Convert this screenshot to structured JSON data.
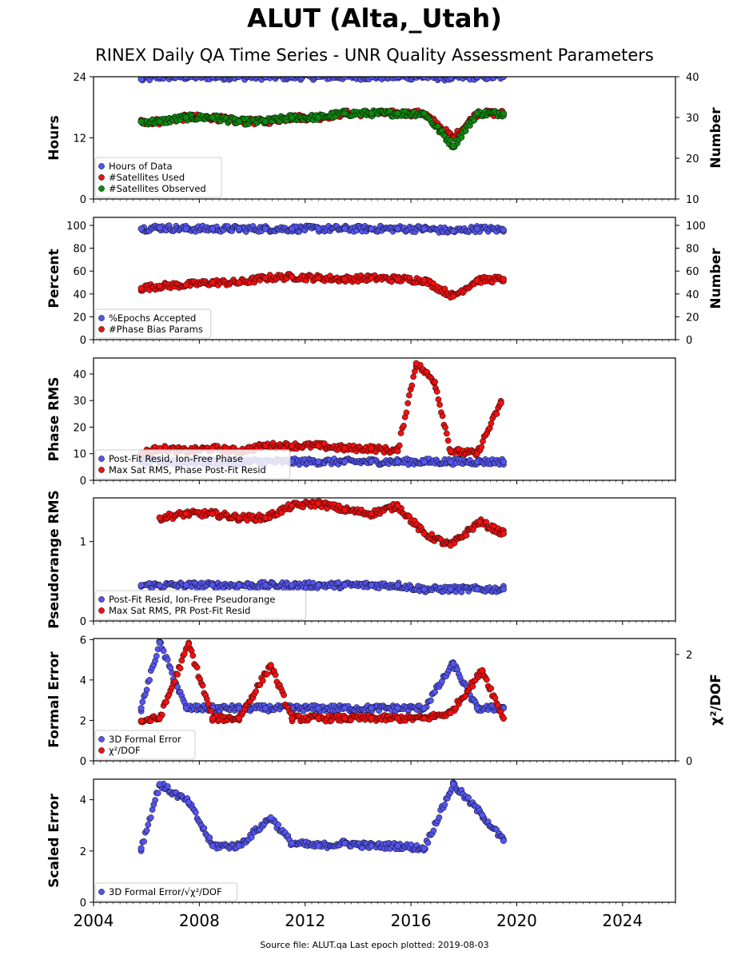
{
  "title": "ALUT (Alta,_Utah)",
  "subtitle": "RINEX Daily QA Time Series - UNR Quality Assessment Parameters",
  "footer": "Source file: ALUT.qa Last epoch plotted: 2019-08-03",
  "colors": {
    "blue": "#5555ee",
    "red": "#ee1111",
    "green": "#118811",
    "axis": "#000000"
  },
  "chart_data": [
    {
      "type": "scatter",
      "xlim": [
        2004,
        2026
      ],
      "xticks": [
        2004,
        2008,
        2012,
        2016,
        2020,
        2024
      ],
      "ylabel": "Hours",
      "ylim": [
        0,
        24
      ],
      "yticks": [
        0,
        12,
        24
      ],
      "y2label": "Number",
      "y2lim": [
        10,
        40
      ],
      "y2ticks": [
        10,
        20,
        30,
        40
      ],
      "legend": "lower-left",
      "series": [
        {
          "name": "Hours of Data",
          "color": "blue",
          "axis": "left",
          "x": [
            2005.8,
            2006.5,
            2007.5,
            2008.5,
            2009.5,
            2010.5,
            2011.5,
            2012.5,
            2013.5,
            2014.5,
            2015.5,
            2016.5,
            2017.5,
            2018.5,
            2019.5
          ],
          "y": [
            23.5,
            24,
            24,
            24,
            24,
            24,
            24,
            24,
            24,
            24,
            24,
            24,
            23.8,
            24,
            24
          ]
        },
        {
          "name": "#Satellites Used",
          "color": "red",
          "axis": "right",
          "x": [
            2005.8,
            2006.5,
            2007.5,
            2008.5,
            2009.5,
            2010.5,
            2011.5,
            2012.5,
            2013.5,
            2014.5,
            2015.5,
            2016.5,
            2017.6,
            2018.5,
            2019.5
          ],
          "y": [
            29,
            29,
            30,
            30,
            29,
            29,
            30,
            30,
            31,
            31,
            31,
            31,
            25,
            31,
            31
          ]
        },
        {
          "name": "#Satellites Observed",
          "color": "green",
          "axis": "right",
          "x": [
            2005.8,
            2006.5,
            2007.5,
            2008.5,
            2009.5,
            2010.5,
            2011.5,
            2012.5,
            2013.5,
            2014.5,
            2015.5,
            2016.5,
            2017.6,
            2018.5,
            2019.5
          ],
          "y": [
            29,
            29,
            30,
            30,
            29,
            29,
            30,
            30,
            31,
            31,
            31,
            31,
            23,
            31,
            31
          ]
        }
      ]
    },
    {
      "type": "scatter",
      "xlim": [
        2004,
        2026
      ],
      "xticks": [
        2004,
        2008,
        2012,
        2016,
        2020,
        2024
      ],
      "ylabel": "Percent",
      "ylim": [
        0,
        107
      ],
      "yticks": [
        0,
        20,
        40,
        60,
        80,
        100
      ],
      "y2label": "Number",
      "y2lim": [
        0,
        107
      ],
      "y2ticks": [
        0,
        20,
        40,
        60,
        80,
        100
      ],
      "legend": "lower-left",
      "series": [
        {
          "name": "%Epochs Accepted",
          "color": "blue",
          "axis": "left",
          "x": [
            2005.8,
            2006.5,
            2007.5,
            2008.5,
            2009.5,
            2010.5,
            2011.5,
            2012.5,
            2013.5,
            2014.5,
            2015.5,
            2016.5,
            2017.6,
            2018.5,
            2019.5
          ],
          "y": [
            97,
            98,
            97,
            97,
            97,
            97,
            97,
            97,
            97,
            97,
            97,
            97,
            95,
            97,
            96
          ]
        },
        {
          "name": "#Phase Bias Params",
          "color": "red",
          "axis": "right",
          "x": [
            2005.8,
            2006.5,
            2007.5,
            2008.5,
            2009.5,
            2010.5,
            2011.5,
            2012.5,
            2013.5,
            2014.5,
            2015.5,
            2016.5,
            2017.6,
            2018.5,
            2019.5
          ],
          "y": [
            45,
            47,
            48,
            50,
            50,
            54,
            55,
            54,
            53,
            54,
            53,
            52,
            38,
            52,
            53
          ]
        }
      ]
    },
    {
      "type": "scatter",
      "xlim": [
        2004,
        2026
      ],
      "xticks": [
        2004,
        2008,
        2012,
        2016,
        2020,
        2024
      ],
      "ylabel": "Phase RMS",
      "ylim": [
        0,
        46
      ],
      "yticks": [
        0,
        10,
        20,
        30,
        40
      ],
      "legend": "lower-left",
      "series": [
        {
          "name": "Post-Fit Resid, Ion-Free Phase",
          "color": "blue",
          "axis": "left",
          "x": [
            2005.8,
            2006.5,
            2007.5,
            2008.5,
            2009.5,
            2010.5,
            2011.5,
            2012.5,
            2013.5,
            2014.5,
            2015.5,
            2016.5,
            2017.5,
            2018.5,
            2019.5
          ],
          "y": [
            7,
            7,
            7,
            7,
            7,
            7,
            7,
            7,
            7,
            7,
            7,
            7,
            7,
            7,
            7
          ]
        },
        {
          "name": "Max Sat RMS, Phase Post-Fit Resid",
          "color": "red",
          "axis": "left",
          "x": [
            2005.8,
            2006.5,
            2007.5,
            2008.5,
            2009.5,
            2010.5,
            2011.5,
            2012.5,
            2013.5,
            2014.5,
            2015.5,
            2016.2,
            2016.9,
            2017.5,
            2018.5,
            2019.4
          ],
          "y": [
            10,
            12,
            11,
            12,
            11,
            13,
            13,
            13,
            12,
            12,
            11,
            44,
            37,
            11,
            10,
            29
          ]
        }
      ]
    },
    {
      "type": "scatter",
      "xlim": [
        2004,
        2026
      ],
      "xticks": [
        2004,
        2008,
        2012,
        2016,
        2020,
        2024
      ],
      "ylabel": "Pseudorange RMS",
      "ylim": [
        0,
        1.55
      ],
      "yticks": [
        0,
        1
      ],
      "legend": "lower-left",
      "series": [
        {
          "name": "Post-Fit Resid, Ion-Free Pseudorange",
          "color": "blue",
          "axis": "left",
          "x": [
            2005.8,
            2006.5,
            2007.5,
            2008.5,
            2009.5,
            2010.5,
            2011.5,
            2012.5,
            2013.5,
            2014.5,
            2015.5,
            2016.5,
            2017.5,
            2018.5,
            2019.5
          ],
          "y": [
            0.45,
            0.45,
            0.45,
            0.45,
            0.45,
            0.45,
            0.45,
            0.45,
            0.45,
            0.45,
            0.45,
            0.4,
            0.4,
            0.4,
            0.4
          ]
        },
        {
          "name": "Max Sat RMS, PR Post-Fit Resid",
          "color": "red",
          "axis": "left",
          "x": [
            2006.5,
            2007.5,
            2008.5,
            2009.5,
            2010.5,
            2011.5,
            2012.5,
            2013.5,
            2014.5,
            2015.5,
            2016.5,
            2017.5,
            2018.6,
            2019.5
          ],
          "y": [
            1.3,
            1.35,
            1.35,
            1.3,
            1.3,
            1.45,
            1.48,
            1.4,
            1.35,
            1.45,
            1.1,
            0.95,
            1.25,
            1.1
          ]
        }
      ]
    },
    {
      "type": "scatter",
      "xlim": [
        2004,
        2026
      ],
      "xticks": [
        2004,
        2008,
        2012,
        2016,
        2020,
        2024
      ],
      "ylabel": "Formal Error",
      "ylim": [
        0,
        6.05
      ],
      "yticks": [
        0,
        2,
        4,
        6
      ],
      "y2label": "χ²/DOF",
      "y2lim": [
        0,
        2.3
      ],
      "y2ticks": [
        0,
        2
      ],
      "legend": "lower-left",
      "series": [
        {
          "name": "3D Formal Error",
          "color": "blue",
          "axis": "left",
          "x": [
            2005.8,
            2006.5,
            2007.5,
            2008.5,
            2009.5,
            2010.5,
            2011.5,
            2012.5,
            2013.5,
            2014.5,
            2015.5,
            2016.5,
            2017.6,
            2018.5,
            2019.5
          ],
          "y": [
            2.6,
            5.85,
            2.6,
            2.6,
            2.6,
            2.6,
            2.6,
            2.6,
            2.6,
            2.6,
            2.6,
            2.6,
            4.8,
            2.6,
            2.6
          ]
        },
        {
          "name": "χ²/DOF",
          "color": "red",
          "axis": "right",
          "x": [
            2005.8,
            2006.5,
            2007.6,
            2008.5,
            2009.5,
            2010.7,
            2011.5,
            2012.5,
            2013.5,
            2014.5,
            2015.5,
            2016.5,
            2017.5,
            2018.7,
            2019.5
          ],
          "y": [
            0.75,
            0.8,
            2.2,
            0.8,
            0.8,
            1.8,
            0.8,
            0.8,
            0.8,
            0.8,
            0.8,
            0.8,
            0.9,
            1.7,
            0.8
          ]
        }
      ]
    },
    {
      "type": "scatter",
      "xlim": [
        2004,
        2026
      ],
      "xticks": [
        2004,
        2008,
        2012,
        2016,
        2020,
        2024
      ],
      "ylabel": "Scaled Error",
      "ylim": [
        0,
        4.8
      ],
      "yticks": [
        0,
        2,
        4
      ],
      "legend": "lower-left",
      "series": [
        {
          "name": "3D Formal Error/√χ²/DOF",
          "color": "blue",
          "axis": "left",
          "x": [
            2005.8,
            2006.5,
            2007.6,
            2008.5,
            2009.5,
            2010.7,
            2011.5,
            2012.5,
            2013.5,
            2014.5,
            2015.5,
            2016.5,
            2017.6,
            2018.7,
            2019.5
          ],
          "y": [
            2.1,
            4.6,
            3.9,
            2.2,
            2.2,
            3.3,
            2.3,
            2.2,
            2.3,
            2.2,
            2.2,
            2.1,
            4.6,
            3.4,
            2.4
          ]
        }
      ]
    }
  ]
}
